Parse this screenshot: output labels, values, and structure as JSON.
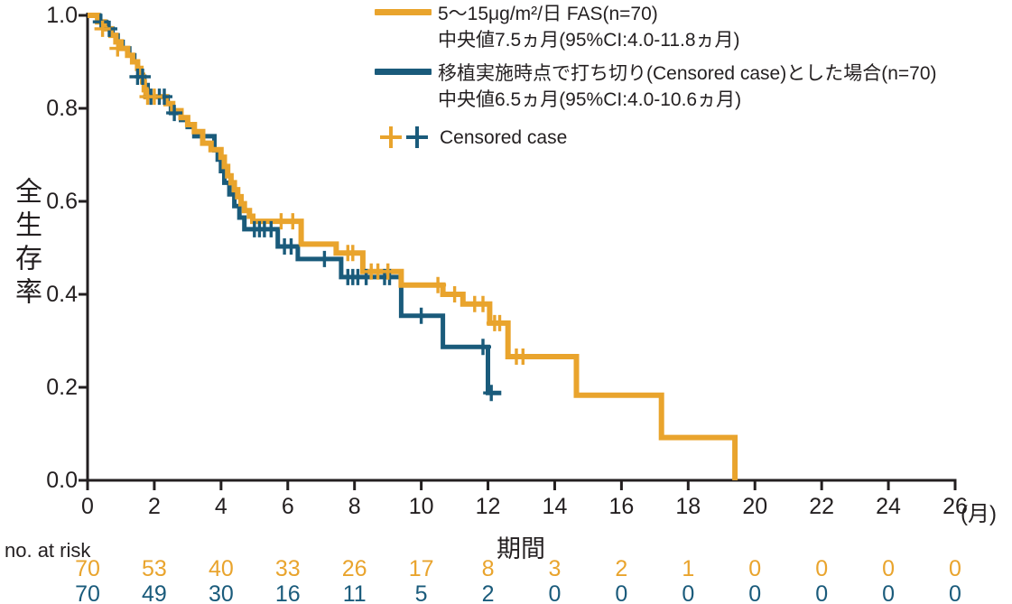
{
  "colors": {
    "fas_orange": "#E9A42D",
    "censored_blue": "#1A5B7B",
    "text": "#231F20",
    "axis": "#231F20"
  },
  "legend": {
    "series1_label": "5〜15μg/m²/日 FAS(n=70)",
    "series1_median": "中央値7.5ヵ月(95%CI:4.0-11.8ヵ月)",
    "series2_label": "移植実施時点で打ち切り(Censored case)とした場合(n=70)",
    "series2_median": "中央値6.5ヵ月(95%CI:4.0-10.6ヵ月)",
    "censored_label": "Censored case"
  },
  "axes": {
    "ylabel": "全生存率",
    "xlabel": "期間",
    "xunit": "(月)"
  },
  "at_risk": {
    "label": "no. at risk"
  },
  "chart_data": {
    "type": "line",
    "subtype": "kaplan-meier-step",
    "xlabel": "期間",
    "xunit": "月",
    "ylabel": "全生存率",
    "xlim": [
      0,
      26
    ],
    "ylim": [
      0.0,
      1.0
    ],
    "xticks": [
      0,
      2,
      4,
      6,
      8,
      10,
      12,
      14,
      16,
      18,
      20,
      22,
      24,
      26
    ],
    "yticks": [
      "1.0",
      "0.8",
      "0.6",
      "0.4",
      "0.2",
      "0.0"
    ],
    "grid": false,
    "legend_position": "top-right",
    "series": [
      {
        "name": "移植実施時点で打ち切り(Censored case)とした場合(n=70)",
        "n": 70,
        "median_months": 6.5,
        "ci95": "4.0-10.6",
        "color": "#1A5B7B",
        "steps": [
          [
            0,
            1.0
          ],
          [
            0.35,
            0.986
          ],
          [
            0.55,
            0.971
          ],
          [
            0.75,
            0.957
          ],
          [
            0.9,
            0.943
          ],
          [
            1.05,
            0.929
          ],
          [
            1.25,
            0.914
          ],
          [
            1.4,
            0.9
          ],
          [
            1.5,
            0.886
          ],
          [
            1.6,
            0.868
          ],
          [
            1.7,
            0.85
          ],
          [
            1.8,
            0.825
          ],
          [
            2.4,
            0.81
          ],
          [
            2.5,
            0.79
          ],
          [
            2.8,
            0.775
          ],
          [
            3.0,
            0.76
          ],
          [
            3.2,
            0.74
          ],
          [
            3.8,
            0.71
          ],
          [
            3.9,
            0.69
          ],
          [
            4.0,
            0.665
          ],
          [
            4.1,
            0.64
          ],
          [
            4.25,
            0.615
          ],
          [
            4.4,
            0.59
          ],
          [
            4.55,
            0.565
          ],
          [
            4.7,
            0.54
          ],
          [
            5.7,
            0.503
          ],
          [
            6.3,
            0.476
          ],
          [
            7.6,
            0.437
          ],
          [
            9.4,
            0.354
          ],
          [
            10.65,
            0.287
          ],
          [
            12.0,
            0.188
          ]
        ],
        "end_x": 12.4,
        "censors": [
          [
            0.4,
            0.986
          ],
          [
            0.65,
            0.971
          ],
          [
            1.5,
            0.868
          ],
          [
            1.65,
            0.868
          ],
          [
            1.9,
            0.825
          ],
          [
            2.15,
            0.825
          ],
          [
            2.3,
            0.825
          ],
          [
            2.6,
            0.79
          ],
          [
            5.0,
            0.54
          ],
          [
            5.15,
            0.54
          ],
          [
            5.3,
            0.54
          ],
          [
            5.5,
            0.54
          ],
          [
            5.9,
            0.503
          ],
          [
            6.1,
            0.503
          ],
          [
            7.1,
            0.476
          ],
          [
            7.8,
            0.437
          ],
          [
            7.95,
            0.437
          ],
          [
            8.1,
            0.437
          ],
          [
            8.35,
            0.437
          ],
          [
            8.9,
            0.437
          ],
          [
            9.05,
            0.437
          ],
          [
            10.0,
            0.354
          ],
          [
            11.85,
            0.287
          ],
          [
            12.1,
            0.188
          ]
        ]
      },
      {
        "name": "5〜15μg/m²/日 FAS(n=70)",
        "n": 70,
        "median_months": 7.5,
        "ci95": "4.0-11.8",
        "color": "#E9A42D",
        "steps": [
          [
            0,
            1.0
          ],
          [
            0.3,
            0.986
          ],
          [
            0.5,
            0.971
          ],
          [
            0.7,
            0.957
          ],
          [
            0.85,
            0.943
          ],
          [
            1.0,
            0.929
          ],
          [
            1.2,
            0.914
          ],
          [
            1.35,
            0.9
          ],
          [
            1.5,
            0.886
          ],
          [
            1.6,
            0.871
          ],
          [
            1.65,
            0.857
          ],
          [
            1.7,
            0.84
          ],
          [
            1.75,
            0.825
          ],
          [
            2.35,
            0.81
          ],
          [
            2.55,
            0.795
          ],
          [
            2.8,
            0.78
          ],
          [
            3.0,
            0.765
          ],
          [
            3.2,
            0.75
          ],
          [
            3.45,
            0.725
          ],
          [
            3.7,
            0.711
          ],
          [
            4.0,
            0.695
          ],
          [
            4.1,
            0.675
          ],
          [
            4.2,
            0.655
          ],
          [
            4.3,
            0.64
          ],
          [
            4.4,
            0.625
          ],
          [
            4.5,
            0.61
          ],
          [
            4.6,
            0.595
          ],
          [
            4.7,
            0.58
          ],
          [
            4.85,
            0.568
          ],
          [
            4.95,
            0.557
          ],
          [
            6.4,
            0.508
          ],
          [
            7.45,
            0.489
          ],
          [
            8.25,
            0.449
          ],
          [
            9.4,
            0.42
          ],
          [
            10.65,
            0.4
          ],
          [
            11.25,
            0.379
          ],
          [
            12.05,
            0.338
          ],
          [
            12.6,
            0.266
          ],
          [
            14.65,
            0.183
          ],
          [
            17.2,
            0.092
          ],
          [
            19.4,
            0.0
          ]
        ],
        "end_x": null,
        "censors": [
          [
            0.45,
            0.971
          ],
          [
            0.9,
            0.929
          ],
          [
            1.8,
            0.825
          ],
          [
            2.0,
            0.825
          ],
          [
            5.8,
            0.557
          ],
          [
            6.15,
            0.557
          ],
          [
            7.8,
            0.489
          ],
          [
            7.95,
            0.489
          ],
          [
            8.5,
            0.449
          ],
          [
            8.7,
            0.449
          ],
          [
            9.0,
            0.449
          ],
          [
            10.5,
            0.42
          ],
          [
            11.0,
            0.4
          ],
          [
            11.6,
            0.379
          ],
          [
            11.85,
            0.379
          ],
          [
            12.2,
            0.338
          ],
          [
            12.35,
            0.338
          ],
          [
            12.85,
            0.266
          ],
          [
            13.05,
            0.266
          ]
        ]
      }
    ],
    "at_risk_table": {
      "label": "no. at risk",
      "x": [
        0,
        2,
        4,
        6,
        8,
        10,
        12,
        14,
        16,
        18,
        20,
        22,
        24,
        26
      ],
      "rows": [
        {
          "name": "5〜15μg/m²/日 FAS",
          "color": "#E9A42D",
          "values": [
            70,
            53,
            40,
            33,
            26,
            17,
            8,
            3,
            2,
            1,
            0,
            0,
            0,
            0
          ]
        },
        {
          "name": "移植実施時点で打ち切りとした場合",
          "color": "#1A5B7B",
          "values": [
            70,
            49,
            30,
            16,
            11,
            5,
            2,
            0,
            0,
            0,
            0,
            0,
            0,
            0
          ]
        }
      ]
    }
  }
}
